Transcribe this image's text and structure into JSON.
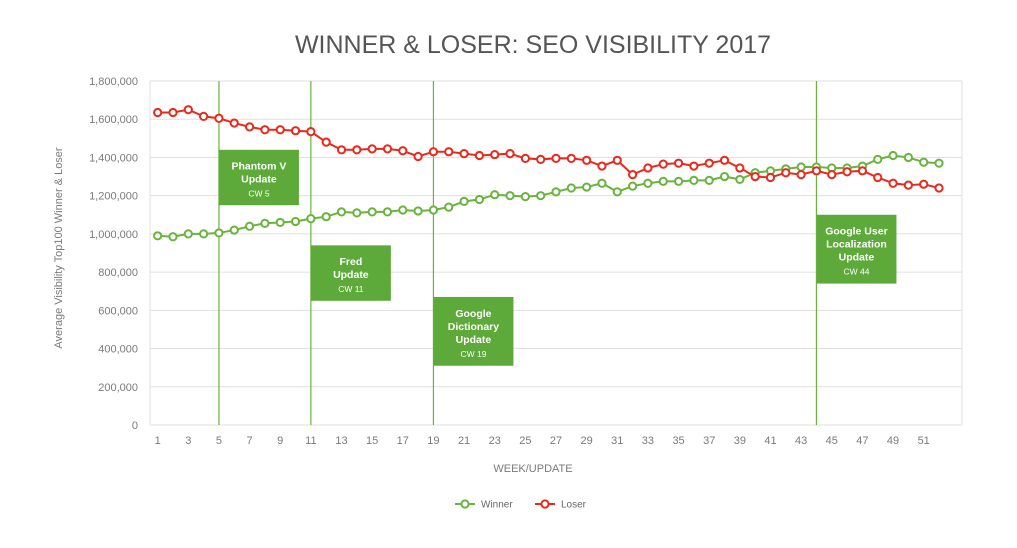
{
  "chart_data": {
    "type": "line",
    "title": "WINNER & LOSER: SEO VISIBILITY 2017",
    "xlabel": "WEEK/UPDATE",
    "ylabel": "Average Visibility Top100 Winner & Loser",
    "x": [
      1,
      2,
      3,
      4,
      5,
      6,
      7,
      8,
      9,
      10,
      11,
      12,
      13,
      14,
      15,
      16,
      17,
      18,
      19,
      20,
      21,
      22,
      23,
      24,
      25,
      26,
      27,
      28,
      29,
      30,
      31,
      32,
      33,
      34,
      35,
      36,
      37,
      38,
      39,
      40,
      41,
      42,
      43,
      44,
      45,
      46,
      47,
      48,
      49,
      50,
      51,
      52
    ],
    "xticks": [
      "1",
      "3",
      "5",
      "7",
      "9",
      "11",
      "13",
      "15",
      "17",
      "19",
      "21",
      "23",
      "25",
      "27",
      "29",
      "31",
      "33",
      "35",
      "37",
      "39",
      "41",
      "43",
      "45",
      "47",
      "49",
      "51"
    ],
    "yticks": [
      "0",
      "200,000",
      "400,000",
      "600,000",
      "800,000",
      "1,000,000",
      "1,200,000",
      "1,400,000",
      "1,600,000",
      "1,800,000"
    ],
    "ylim": [
      0,
      1800000
    ],
    "xlim": [
      0.5,
      53.5
    ],
    "grid": true,
    "legend_position": "bottom-center",
    "series": [
      {
        "name": "Winner",
        "color": "#6ab33e",
        "values": [
          990000,
          985000,
          1000000,
          1000000,
          1005000,
          1020000,
          1040000,
          1055000,
          1060000,
          1065000,
          1080000,
          1090000,
          1115000,
          1110000,
          1115000,
          1115000,
          1125000,
          1120000,
          1125000,
          1140000,
          1170000,
          1180000,
          1205000,
          1200000,
          1195000,
          1200000,
          1220000,
          1240000,
          1245000,
          1265000,
          1220000,
          1250000,
          1265000,
          1275000,
          1275000,
          1280000,
          1280000,
          1300000,
          1285000,
          1320000,
          1330000,
          1340000,
          1350000,
          1350000,
          1345000,
          1345000,
          1355000,
          1390000,
          1410000,
          1400000,
          1375000,
          1370000
        ]
      },
      {
        "name": "Loser",
        "color": "#e8291c",
        "values": [
          1635000,
          1635000,
          1650000,
          1615000,
          1605000,
          1580000,
          1560000,
          1545000,
          1545000,
          1540000,
          1535000,
          1480000,
          1440000,
          1440000,
          1445000,
          1445000,
          1435000,
          1405000,
          1430000,
          1430000,
          1420000,
          1410000,
          1415000,
          1420000,
          1395000,
          1390000,
          1395000,
          1395000,
          1385000,
          1355000,
          1385000,
          1310000,
          1345000,
          1365000,
          1370000,
          1355000,
          1370000,
          1385000,
          1345000,
          1300000,
          1295000,
          1320000,
          1310000,
          1330000,
          1310000,
          1325000,
          1330000,
          1295000,
          1265000,
          1255000,
          1260000,
          1240000
        ]
      }
    ],
    "annotations": [
      {
        "week": 5,
        "title": "Phantom V Update",
        "lines": [
          "Phantom V",
          "Update"
        ],
        "sub": "CW 5",
        "box_top": 1440000,
        "box_bottom": 1150000
      },
      {
        "week": 11,
        "title": "Fred Update",
        "lines": [
          "Fred",
          "Update"
        ],
        "sub": "CW 11",
        "box_top": 940000,
        "box_bottom": 650000
      },
      {
        "week": 19,
        "title": "Google Dictionary Update",
        "lines": [
          "Google",
          "Dictionary",
          "Update"
        ],
        "sub": "CW 19",
        "box_top": 670000,
        "box_bottom": 310000
      },
      {
        "week": 44,
        "title": "Google User Localization Update",
        "lines": [
          "Google User",
          "Localization",
          "Update"
        ],
        "sub": "CW 44",
        "box_top": 1100000,
        "box_bottom": 740000
      }
    ]
  }
}
